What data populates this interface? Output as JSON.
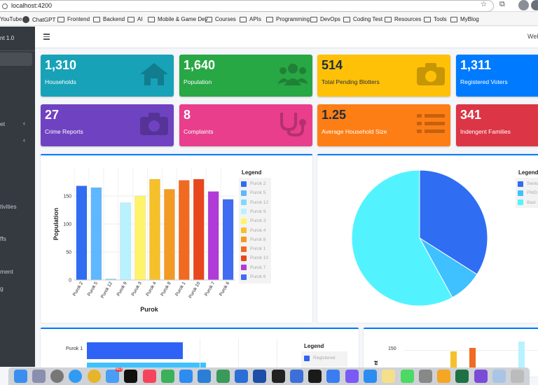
{
  "browser": {
    "url": "localhost:4200",
    "bookmarks": [
      "YouTube",
      "ChatGPT",
      "Frontend",
      "Backend",
      "AI",
      "Mobile & Game Dev",
      "Courses",
      "APIs",
      "Programming",
      "DevOps",
      "Coding Test",
      "Resources",
      "Tools",
      "MyBlog"
    ]
  },
  "sidebar": {
    "brand": "nt 1.0",
    "items": [
      {
        "label": "et",
        "chevron": "‹"
      },
      {
        "label": "",
        "chevron": "‹"
      },
      {
        "label": "tivities"
      },
      {
        "label": "ffs"
      },
      {
        "label": "ment"
      },
      {
        "label": "g"
      }
    ]
  },
  "header": {
    "welcome": "Wel"
  },
  "stats": [
    {
      "value": "1,310",
      "label": "Households",
      "color": "#17a2b8",
      "icon": "house-icon"
    },
    {
      "value": "1,640",
      "label": "Population",
      "color": "#28a745",
      "icon": "users-icon"
    },
    {
      "value": "514",
      "label": "Total Pending Blotters",
      "color": "#ffc107",
      "icon": "camera-icon"
    },
    {
      "value": "1,311",
      "label": "Registered Voters",
      "color": "#007bff",
      "icon": "vote-icon"
    },
    {
      "value": "27",
      "label": "Crime Reports",
      "color": "#6f42c1",
      "icon": "camera-icon"
    },
    {
      "value": "8",
      "label": "Complaints",
      "color": "#e83e8c",
      "icon": "stethoscope-icon"
    },
    {
      "value": "1.25",
      "label": "Average Household Size",
      "color": "#fd7e14",
      "icon": "list-icon"
    },
    {
      "value": "341",
      "label": "Indengent Families",
      "color": "#dc3545",
      "icon": "family-icon"
    }
  ],
  "chart_data": [
    {
      "type": "bar",
      "categories": [
        "Purok 2",
        "Purok 5",
        "Purok 12",
        "Purok 9",
        "Purok 3",
        "Purok 4",
        "Purok 8",
        "Purok 1",
        "Purok 10",
        "Purok 7",
        "Purok 6"
      ],
      "values": [
        168,
        165,
        2,
        138,
        150,
        180,
        162,
        178,
        180,
        158,
        144
      ],
      "colors": [
        "#2f6df2",
        "#5fb8ff",
        "#7fd9ff",
        "#b8f2ff",
        "#fff36a",
        "#f5c02a",
        "#f39a24",
        "#f06a22",
        "#e8461d",
        "#b13bd6",
        "#3f6cf3"
      ],
      "xlabel": "Purok",
      "ylabel": "Population",
      "ylim": [
        0,
        200
      ],
      "yticks": [
        0,
        50,
        100,
        150
      ],
      "legend_title": "Legend"
    },
    {
      "type": "pie",
      "values": [
        0.34,
        0.08,
        0.58
      ],
      "labels": [
        "Senio",
        "PWD",
        "Basi"
      ],
      "colors": [
        "#2f6df2",
        "#3fc0ff",
        "#52f3ff"
      ],
      "legend_title": "Legend"
    },
    {
      "type": "bar",
      "orientation": "horizontal",
      "categories": [
        "Purok 1"
      ],
      "series": [
        {
          "name": "Registered",
          "color": "#2f63f5"
        }
      ],
      "legend_title": "Legend"
    },
    {
      "type": "bar",
      "yticks": [
        150
      ],
      "ylabel": "nt"
    }
  ]
}
